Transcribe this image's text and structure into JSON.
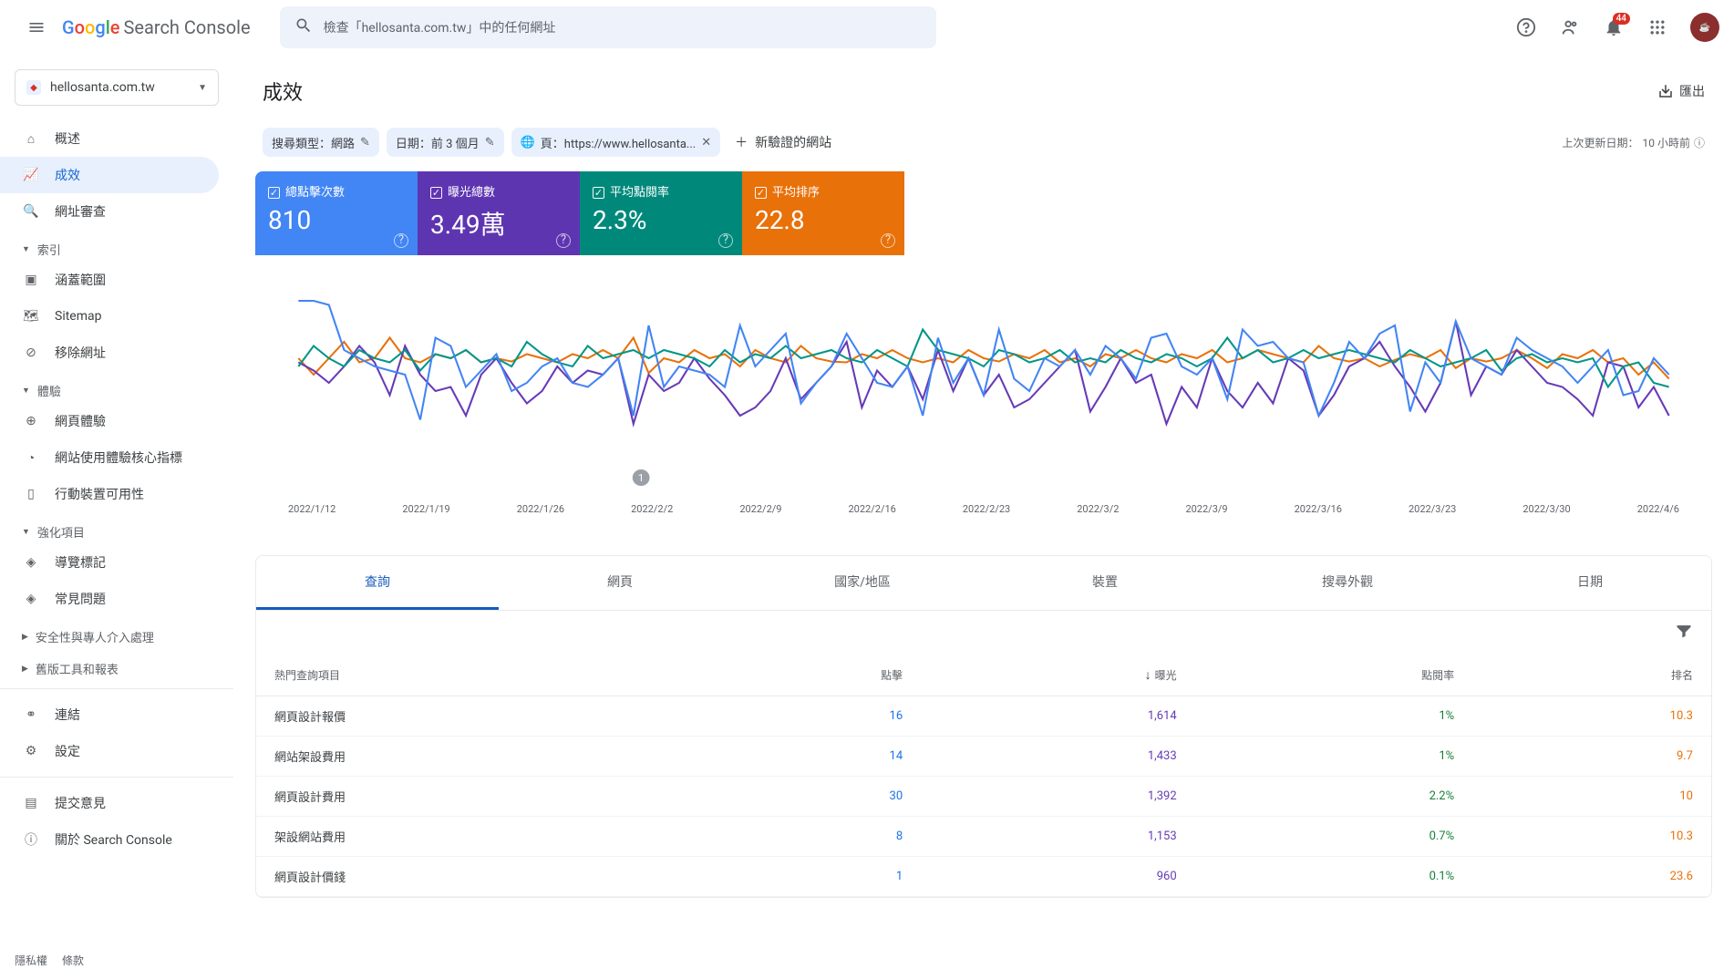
{
  "header": {
    "search_placeholder": "檢查「hellosanta.com.tw」中的任何網址",
    "notification_count": "44"
  },
  "property": {
    "domain": "hellosanta.com.tw"
  },
  "sidebar": {
    "items": {
      "overview": "概述",
      "performance": "成效",
      "url_inspection": "網址審查"
    },
    "sections": {
      "index": "索引",
      "experience": "體驗",
      "enhancements": "強化項目",
      "security": "安全性與專人介入處理",
      "legacy": "舊版工具和報表"
    },
    "index_items": {
      "coverage": "涵蓋範圍",
      "sitemaps": "Sitemap",
      "removals": "移除網址"
    },
    "experience_items": {
      "page_exp": "網頁體驗",
      "cwv": "網站使用體驗核心指標",
      "mobile": "行動裝置可用性"
    },
    "enhance_items": {
      "breadcrumbs": "導覽標記",
      "faq": "常見問題"
    },
    "bottom": {
      "links": "連結",
      "settings": "設定",
      "feedback": "提交意見",
      "about": "關於 Search Console"
    }
  },
  "page": {
    "title": "成效",
    "export": "匯出",
    "last_updated_label": "上次更新日期：",
    "last_updated_value": "10 小時前"
  },
  "filters": {
    "search_type": "搜尋類型：網路",
    "date": "日期：前 3 個月",
    "page": "頁：https://www.hellosanta...",
    "add_new": "新驗證的網站"
  },
  "metrics": [
    {
      "label": "總點擊次數",
      "value": "810",
      "color": "#4285f4"
    },
    {
      "label": "曝光總數",
      "value": "3.49萬",
      "color": "#5e35b1"
    },
    {
      "label": "平均點閱率",
      "value": "2.3%",
      "color": "#00897b"
    },
    {
      "label": "平均排序",
      "value": "22.8",
      "color": "#e8710a"
    }
  ],
  "chart": {
    "colors": {
      "clicks": "#4285f4",
      "impressions": "#673ab7",
      "ctr": "#009688",
      "position": "#e8710a"
    },
    "x_labels": [
      "2022/1/12",
      "2022/1/19",
      "2022/1/26",
      "2022/2/2",
      "2022/2/9",
      "2022/2/16",
      "2022/2/23",
      "2022/3/2",
      "2022/3/9",
      "2022/3/16",
      "2022/3/23",
      "2022/3/30",
      "2022/4/6"
    ],
    "annotation": {
      "x": 3,
      "label": "1"
    },
    "series": {
      "clicks": [
        200,
        200,
        195,
        140,
        130,
        120,
        115,
        110,
        55,
        155,
        145,
        95,
        115,
        135,
        90,
        100,
        120,
        130,
        100,
        95,
        110,
        130,
        60,
        170,
        95,
        120,
        115,
        110,
        95,
        170,
        120,
        140,
        160,
        75,
        100,
        120,
        160,
        130,
        100,
        95,
        120,
        60,
        155,
        100,
        130,
        85,
        165,
        105,
        90,
        130,
        120,
        140,
        110,
        145,
        130,
        105,
        155,
        160,
        120,
        110,
        130,
        80,
        165,
        145,
        150,
        130,
        125,
        60,
        100,
        150,
        130,
        160,
        170,
        65,
        125,
        100,
        175,
        130,
        120,
        110,
        155,
        140,
        130,
        120,
        100,
        120,
        140,
        85,
        90,
        130,
        110
      ],
      "impressions": [
        125,
        115,
        100,
        120,
        145,
        125,
        85,
        145,
        110,
        90,
        95,
        60,
        110,
        130,
        100,
        75,
        90,
        120,
        100,
        115,
        110,
        130,
        50,
        110,
        90,
        100,
        130,
        105,
        85,
        60,
        70,
        90,
        130,
        80,
        100,
        120,
        150,
        70,
        115,
        95,
        120,
        80,
        140,
        90,
        130,
        85,
        110,
        70,
        80,
        100,
        120,
        140,
        65,
        95,
        130,
        100,
        110,
        50,
        95,
        70,
        130,
        90,
        70,
        100,
        75,
        130,
        115,
        60,
        85,
        120,
        130,
        150,
        120,
        95,
        65,
        100,
        175,
        85,
        120,
        110,
        140,
        120,
        100,
        95,
        80,
        60,
        125,
        120,
        70,
        95,
        60
      ],
      "ctr": [
        120,
        145,
        130,
        120,
        140,
        130,
        125,
        140,
        115,
        135,
        130,
        140,
        125,
        130,
        120,
        150,
        135,
        125,
        120,
        145,
        130,
        135,
        140,
        130,
        140,
        135,
        130,
        120,
        140,
        125,
        135,
        130,
        145,
        130,
        135,
        140,
        130,
        125,
        140,
        130,
        120,
        165,
        140,
        135,
        130,
        120,
        140,
        135,
        125,
        130,
        140,
        125,
        130,
        125,
        140,
        130,
        125,
        135,
        130,
        120,
        130,
        155,
        130,
        140,
        125,
        130,
        140,
        130,
        135,
        140,
        135,
        130,
        125,
        140,
        130,
        120,
        125,
        130,
        140,
        115,
        130,
        135,
        125,
        130,
        125,
        130,
        95,
        120,
        125,
        100,
        95
      ],
      "position": [
        130,
        110,
        130,
        150,
        125,
        130,
        155,
        130,
        125,
        135,
        130,
        140,
        125,
        130,
        126,
        135,
        130,
        125,
        135,
        130,
        140,
        130,
        155,
        112,
        130,
        125,
        140,
        130,
        135,
        120,
        140,
        130,
        125,
        145,
        130,
        126,
        125,
        135,
        130,
        140,
        130,
        125,
        130,
        125,
        140,
        130,
        126,
        135,
        130,
        140,
        125,
        130,
        120,
        135,
        130,
        140,
        130,
        125,
        135,
        130,
        140,
        125,
        130,
        140,
        135,
        130,
        125,
        145,
        130,
        126,
        130,
        120,
        128,
        135,
        130,
        140,
        118,
        130,
        126,
        130,
        140,
        130,
        118,
        135,
        130,
        140,
        125,
        130,
        110,
        125,
        105
      ]
    }
  },
  "tabs": [
    "查詢",
    "網頁",
    "國家/地區",
    "裝置",
    "搜尋外觀",
    "日期"
  ],
  "table": {
    "columns": {
      "query": "熱門查詢項目",
      "clicks": "點擊",
      "impressions": "曝光",
      "ctr": "點閱率",
      "position": "排名"
    },
    "rows": [
      {
        "query": "網頁設計報價",
        "clicks": "16",
        "impressions": "1,614",
        "ctr": "1%",
        "position": "10.3"
      },
      {
        "query": "網站架設費用",
        "clicks": "14",
        "impressions": "1,433",
        "ctr": "1%",
        "position": "9.7"
      },
      {
        "query": "網頁設計費用",
        "clicks": "30",
        "impressions": "1,392",
        "ctr": "2.2%",
        "position": "10"
      },
      {
        "query": "架設網站費用",
        "clicks": "8",
        "impressions": "1,153",
        "ctr": "0.7%",
        "position": "10.3"
      },
      {
        "query": "網頁設計價錢",
        "clicks": "1",
        "impressions": "960",
        "ctr": "0.1%",
        "position": "23.6"
      }
    ],
    "value_colors": {
      "clicks": "#1a73e8",
      "impressions": "#673ab7",
      "ctr": "#188038",
      "position": "#e8710a"
    }
  },
  "footer": {
    "privacy": "隱私權",
    "terms": "條款"
  }
}
